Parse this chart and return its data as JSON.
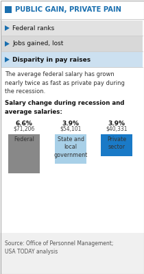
{
  "title": "PUBLIC GAIN, PRIVATE PAIN",
  "title_color": "#1a6faf",
  "title_square_color": "#1a6faf",
  "menu_items": [
    "Federal ranks",
    "Jobs gained, lost",
    "Disparity in pay raises"
  ],
  "active_menu": 2,
  "description": "The average federal salary has grown\nnearly twice as fast as private pay during\nthe recession.",
  "chart_title": "Salary change during recession and\naverage salaries:",
  "categories": [
    "Federal",
    "State and\nlocal\ngovernment",
    "Private\nsector"
  ],
  "values": [
    71206,
    54101,
    40331
  ],
  "pct_changes": [
    "6.6%",
    "3.9%",
    "3.9%"
  ],
  "salary_labels": [
    "$71,206",
    "$54,101",
    "$40,331"
  ],
  "bar_colors": [
    "#888888",
    "#a8d0e8",
    "#1a7ac7"
  ],
  "ylim": [
    0,
    85000
  ],
  "source": "Source: Office of Personnel Management;\nUSA TODAY analysis",
  "bg_color": "#f0f0f0",
  "title_bg": "#ffffff",
  "menu_bg_colors": [
    "#e2e2e2",
    "#d8d8d8",
    "#cce0f0"
  ],
  "content_bg": "#ffffff",
  "arrow_color": "#1a6faf"
}
